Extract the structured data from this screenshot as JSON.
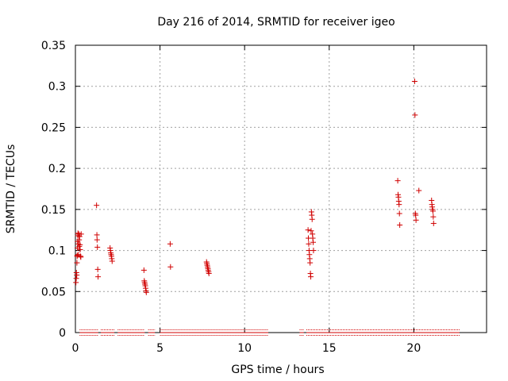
{
  "chart_data": {
    "type": "scatter",
    "title": "Day 216 of 2014, SRMTID for receiver igeo",
    "xlabel": "GPS time / hours",
    "ylabel": "SRMTID / TECUs",
    "xlim": [
      0,
      24.3
    ],
    "ylim": [
      0,
      0.35
    ],
    "x_ticks": [
      0,
      5,
      10,
      15,
      20
    ],
    "y_ticks": [
      0,
      0.05,
      0.1,
      0.15,
      0.2,
      0.25,
      0.3,
      0.35
    ],
    "x_tick_labels": [
      "0",
      "5",
      "10",
      "15",
      "20"
    ],
    "y_tick_labels": [
      "0",
      "0.05",
      "0.1",
      "0.15",
      "0.2",
      "0.25",
      "0.3",
      "0.35"
    ],
    "grid": true,
    "marker": "+",
    "color": "#d00000",
    "series": [
      {
        "name": "SRMTID",
        "points": [
          [
            0.03,
            0.061
          ],
          [
            0.05,
            0.066
          ],
          [
            0.06,
            0.073
          ],
          [
            0.08,
            0.07
          ],
          [
            0.09,
            0.085
          ],
          [
            0.1,
            0.093
          ],
          [
            0.11,
            0.094
          ],
          [
            0.12,
            0.103
          ],
          [
            0.13,
            0.111
          ],
          [
            0.14,
            0.118
          ],
          [
            0.15,
            0.121
          ],
          [
            0.17,
            0.108
          ],
          [
            0.18,
            0.095
          ],
          [
            0.2,
            0.12
          ],
          [
            0.22,
            0.113
          ],
          [
            0.23,
            0.105
          ],
          [
            0.25,
            0.117
          ],
          [
            0.27,
            0.107
          ],
          [
            0.28,
            0.101
          ],
          [
            0.3,
            0.093
          ],
          [
            0.32,
            0.092
          ],
          [
            0.34,
            0.12
          ],
          [
            1.25,
            0.155
          ],
          [
            1.27,
            0.119
          ],
          [
            1.28,
            0.113
          ],
          [
            1.3,
            0.104
          ],
          [
            1.32,
            0.077
          ],
          [
            1.34,
            0.068
          ],
          [
            2.05,
            0.103
          ],
          [
            2.07,
            0.1
          ],
          [
            2.09,
            0.097
          ],
          [
            2.11,
            0.095
          ],
          [
            2.13,
            0.093
          ],
          [
            2.15,
            0.09
          ],
          [
            2.17,
            0.087
          ],
          [
            4.05,
            0.076
          ],
          [
            4.07,
            0.063
          ],
          [
            4.09,
            0.061
          ],
          [
            4.11,
            0.059
          ],
          [
            4.13,
            0.057
          ],
          [
            4.15,
            0.054
          ],
          [
            4.17,
            0.051
          ],
          [
            4.19,
            0.049
          ],
          [
            5.6,
            0.108
          ],
          [
            5.62,
            0.08
          ],
          [
            7.75,
            0.086
          ],
          [
            7.77,
            0.084
          ],
          [
            7.79,
            0.082
          ],
          [
            7.81,
            0.08
          ],
          [
            7.83,
            0.078
          ],
          [
            7.85,
            0.076
          ],
          [
            7.87,
            0.074
          ],
          [
            7.89,
            0.072
          ],
          [
            13.75,
            0.125
          ],
          [
            13.77,
            0.115
          ],
          [
            13.79,
            0.108
          ],
          [
            13.81,
            0.1
          ],
          [
            13.83,
            0.095
          ],
          [
            13.85,
            0.09
          ],
          [
            13.87,
            0.085
          ],
          [
            13.89,
            0.072
          ],
          [
            13.91,
            0.068
          ],
          [
            13.93,
            0.124
          ],
          [
            13.95,
            0.147
          ],
          [
            13.97,
            0.143
          ],
          [
            13.99,
            0.138
          ],
          [
            14.01,
            0.12
          ],
          [
            14.03,
            0.115
          ],
          [
            14.05,
            0.11
          ],
          [
            14.07,
            0.1
          ],
          [
            19.05,
            0.185
          ],
          [
            19.07,
            0.168
          ],
          [
            19.09,
            0.165
          ],
          [
            19.11,
            0.16
          ],
          [
            19.13,
            0.156
          ],
          [
            19.15,
            0.145
          ],
          [
            19.17,
            0.131
          ],
          [
            20.05,
            0.306
          ],
          [
            20.07,
            0.265
          ],
          [
            20.09,
            0.145
          ],
          [
            20.11,
            0.143
          ],
          [
            20.13,
            0.137
          ],
          [
            20.3,
            0.173
          ],
          [
            21.05,
            0.161
          ],
          [
            21.07,
            0.156
          ],
          [
            21.09,
            0.153
          ],
          [
            21.11,
            0.15
          ],
          [
            21.13,
            0.148
          ],
          [
            21.15,
            0.141
          ],
          [
            21.17,
            0.133
          ]
        ]
      }
    ],
    "zero_runs": [
      [
        0.25,
        1.35
      ],
      [
        1.5,
        2.3
      ],
      [
        2.5,
        4.1
      ],
      [
        4.3,
        4.7
      ],
      [
        5.0,
        11.4
      ],
      [
        13.25,
        13.5
      ],
      [
        13.65,
        22.7
      ]
    ]
  }
}
